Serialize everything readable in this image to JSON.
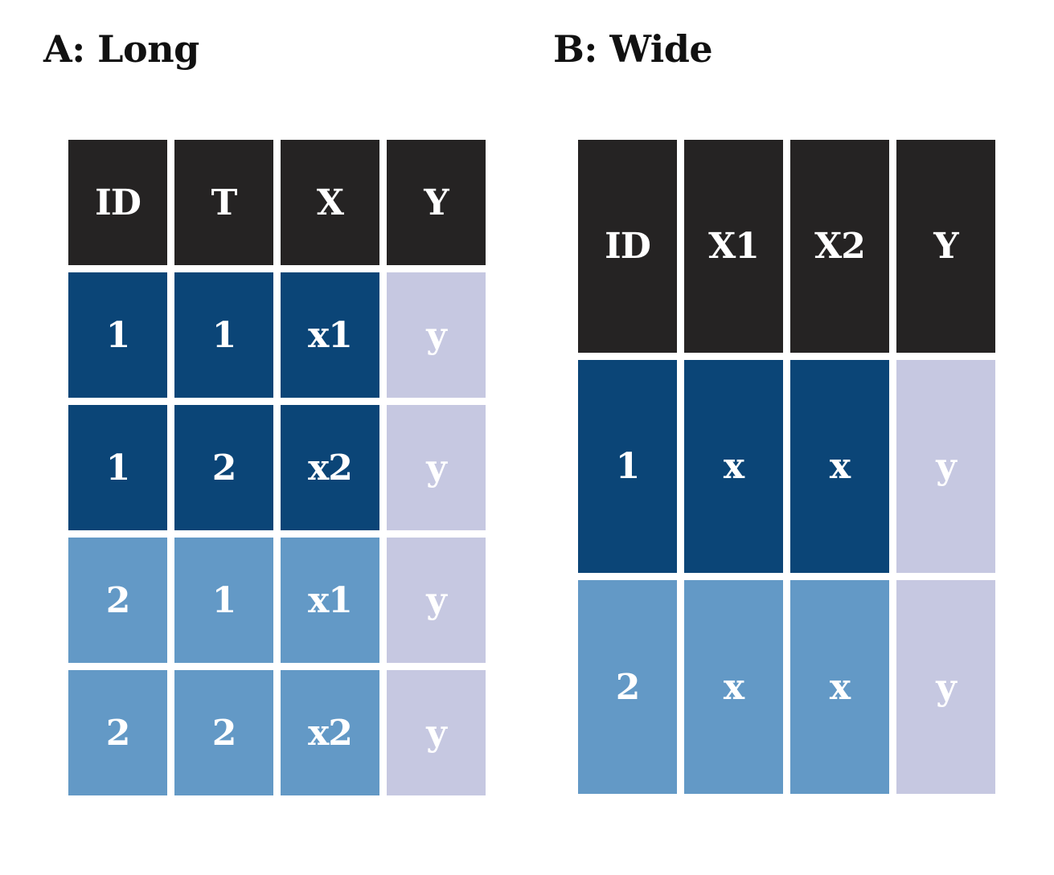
{
  "colors": {
    "header": "#252323",
    "group1": "#0b4577",
    "group2": "#6399c6",
    "outcome": "#c6c8e1",
    "text": "#ffffff"
  },
  "panels": [
    {
      "title": "A: Long",
      "header": [
        "ID",
        "T",
        "X",
        "Y"
      ],
      "rows": [
        {
          "group": "dark",
          "cells": [
            "1",
            "1",
            "x1",
            "y"
          ]
        },
        {
          "group": "dark",
          "cells": [
            "1",
            "2",
            "x2",
            "y"
          ]
        },
        {
          "group": "light",
          "cells": [
            "2",
            "1",
            "x1",
            "y"
          ]
        },
        {
          "group": "light",
          "cells": [
            "2",
            "2",
            "x2",
            "y"
          ]
        }
      ]
    },
    {
      "title": "B: Wide",
      "header": [
        "ID",
        "X1",
        "X2",
        "Y"
      ],
      "rows": [
        {
          "group": "dark",
          "cells": [
            "1",
            "x",
            "x",
            "y"
          ]
        },
        {
          "group": "light",
          "cells": [
            "2",
            "x",
            "x",
            "y"
          ]
        }
      ]
    }
  ]
}
